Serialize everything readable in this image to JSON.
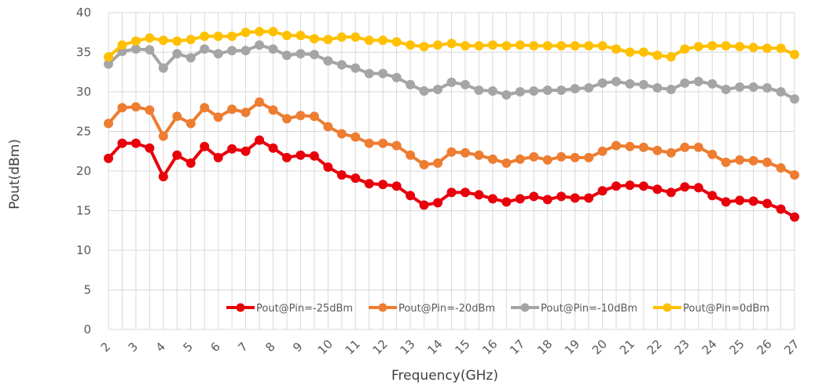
{
  "chart_data": {
    "type": "line",
    "title": "",
    "xlabel": "Frequency(GHz)",
    "ylabel": "Pout(dBm)",
    "ylim": [
      0,
      40
    ],
    "yticks": [
      0,
      5,
      10,
      15,
      20,
      25,
      30,
      35,
      40
    ],
    "xticks": [
      2,
      3,
      4,
      5,
      6,
      7,
      8,
      9,
      10,
      11,
      12,
      13,
      14,
      15,
      16,
      17,
      18,
      19,
      20,
      21,
      22,
      23,
      24,
      25,
      26,
      27
    ],
    "grid": true,
    "legend_position": "bottom-right",
    "x": [
      2,
      2.5,
      3,
      3.5,
      4,
      4.5,
      5,
      5.5,
      6,
      6.5,
      7,
      7.5,
      8,
      8.5,
      9,
      9.5,
      10,
      10.5,
      11,
      11.5,
      12,
      12.5,
      13,
      13.5,
      14,
      14.5,
      15,
      15.5,
      16,
      16.5,
      17,
      17.5,
      18,
      18.5,
      19,
      19.5,
      20,
      20.5,
      21,
      21.5,
      22,
      22.5,
      23,
      23.5,
      24,
      24.5,
      25,
      25.5,
      26,
      26.5,
      27
    ],
    "series": [
      {
        "name": "Pout@Pin=-25dBm",
        "color": "#e8000b",
        "values": [
          21.6,
          23.5,
          23.5,
          22.9,
          19.3,
          22.0,
          21.0,
          23.1,
          21.7,
          22.8,
          22.5,
          23.9,
          22.9,
          21.7,
          22.0,
          21.9,
          20.5,
          19.5,
          19.1,
          18.4,
          18.3,
          18.1,
          16.9,
          15.7,
          16.0,
          17.3,
          17.3,
          17.0,
          16.5,
          16.1,
          16.5,
          16.8,
          16.4,
          16.8,
          16.6,
          16.6,
          17.5,
          18.1,
          18.2,
          18.1,
          17.7,
          17.3,
          18.0,
          17.9,
          16.9,
          16.1,
          16.3,
          16.2,
          15.9,
          15.2,
          14.2
        ]
      },
      {
        "name": "Pout@Pin=-20dBm",
        "color": "#ed7d31",
        "values": [
          26.0,
          28.0,
          28.1,
          27.7,
          24.4,
          26.9,
          26.0,
          28.0,
          26.8,
          27.8,
          27.4,
          28.7,
          27.7,
          26.6,
          27.0,
          26.9,
          25.6,
          24.7,
          24.3,
          23.5,
          23.5,
          23.2,
          22.0,
          20.8,
          21.0,
          22.4,
          22.3,
          22.0,
          21.5,
          21.0,
          21.5,
          21.8,
          21.4,
          21.8,
          21.7,
          21.7,
          22.5,
          23.2,
          23.1,
          23.0,
          22.6,
          22.3,
          23.0,
          23.0,
          22.1,
          21.1,
          21.4,
          21.3,
          21.1,
          20.4,
          19.5
        ]
      },
      {
        "name": "Pout@Pin=-10dBm",
        "color": "#a5a5a5",
        "values": [
          33.5,
          35.1,
          35.4,
          35.3,
          33.0,
          34.8,
          34.3,
          35.4,
          34.8,
          35.2,
          35.2,
          35.9,
          35.4,
          34.6,
          34.8,
          34.7,
          33.9,
          33.4,
          33.0,
          32.3,
          32.3,
          31.8,
          30.9,
          30.1,
          30.3,
          31.2,
          30.9,
          30.2,
          30.1,
          29.6,
          30.0,
          30.1,
          30.2,
          30.2,
          30.4,
          30.5,
          31.1,
          31.3,
          31.0,
          30.9,
          30.5,
          30.3,
          31.1,
          31.3,
          31.0,
          30.3,
          30.6,
          30.6,
          30.5,
          30.0,
          29.1
        ]
      },
      {
        "name": "Pout@Pin=0dBm",
        "color": "#ffc000",
        "values": [
          34.4,
          35.9,
          36.4,
          36.8,
          36.5,
          36.4,
          36.6,
          37.0,
          37.0,
          37.0,
          37.5,
          37.6,
          37.6,
          37.1,
          37.1,
          36.7,
          36.6,
          36.9,
          36.9,
          36.5,
          36.5,
          36.3,
          35.9,
          35.7,
          35.9,
          36.1,
          35.8,
          35.8,
          35.9,
          35.8,
          35.9,
          35.8,
          35.8,
          35.8,
          35.8,
          35.8,
          35.8,
          35.4,
          35.0,
          35.0,
          34.6,
          34.4,
          35.4,
          35.7,
          35.8,
          35.8,
          35.7,
          35.6,
          35.5,
          35.5,
          34.7
        ]
      }
    ]
  }
}
